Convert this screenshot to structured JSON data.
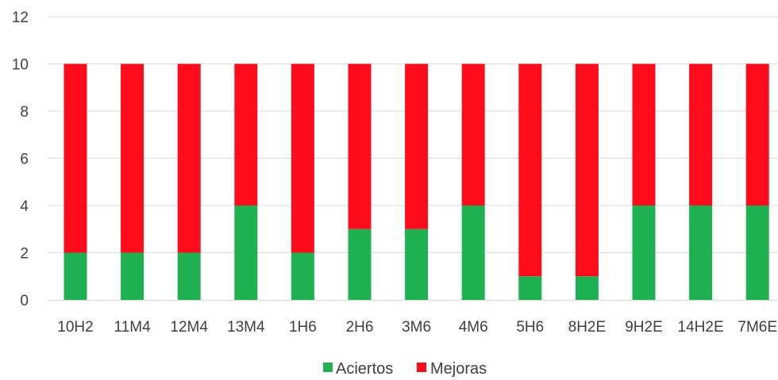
{
  "chart_data": {
    "type": "bar",
    "stacked": true,
    "categories": [
      "10H2",
      "11M4",
      "12M4",
      "13M4",
      "1H6",
      "2H6",
      "3M6",
      "4M6",
      "5H6",
      "8H2E",
      "9H2E",
      "14H2E",
      "7M6E"
    ],
    "series": [
      {
        "name": "Aciertos",
        "color": "#1fb052",
        "values": [
          2,
          2,
          2,
          4,
          2,
          3,
          3,
          4,
          1,
          1,
          4,
          4,
          4
        ]
      },
      {
        "name": "Mejoras",
        "color": "#fd0d1b",
        "values": [
          8,
          8,
          8,
          6,
          8,
          7,
          7,
          6,
          9,
          9,
          6,
          6,
          6
        ]
      }
    ],
    "ylim": [
      0,
      12
    ],
    "yticks": [
      0,
      2,
      4,
      6,
      8,
      10,
      12
    ],
    "grid": true,
    "legend": "bottom",
    "title": "",
    "xlabel": "",
    "ylabel": ""
  }
}
